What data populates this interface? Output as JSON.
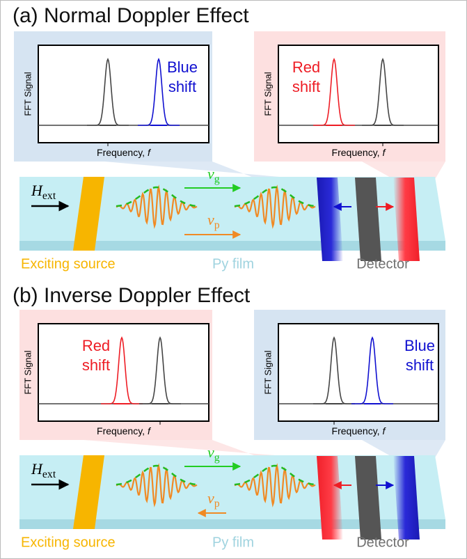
{
  "panels": [
    {
      "title": "(a) Normal Doppler Effect",
      "left_plot": {
        "y_label": "FFT Signal",
        "x_label": "Frequency,",
        "x_label_var": "f",
        "annotation": [
          "Blue",
          "shift"
        ]
      },
      "right_plot": {
        "y_label": "FFT Signal",
        "x_label": "Frequency,",
        "x_label_var": "f",
        "annotation": [
          "Red",
          "shift"
        ]
      },
      "field_label": {
        "symbol": "H",
        "subscript": "ext"
      },
      "group_velocity": {
        "symbol": "v",
        "subscript": "g"
      },
      "phase_velocity": {
        "symbol": "v",
        "subscript": "p"
      },
      "labels": {
        "source": "Exciting source",
        "film": "Py film",
        "detector": "Detector"
      }
    },
    {
      "title": "(b) Inverse Doppler Effect",
      "left_plot": {
        "y_label": "FFT Signal",
        "x_label": "Frequency,",
        "x_label_var": "f",
        "annotation": [
          "Red",
          "shift"
        ]
      },
      "right_plot": {
        "y_label": "FFT Signal",
        "x_label": "Frequency,",
        "x_label_var": "f",
        "annotation": [
          "Blue",
          "shift"
        ]
      },
      "field_label": {
        "symbol": "H",
        "subscript": "ext"
      },
      "group_velocity": {
        "symbol": "v",
        "subscript": "g"
      },
      "phase_velocity": {
        "symbol": "v",
        "subscript": "p"
      },
      "labels": {
        "source": "Exciting source",
        "film": "Py film",
        "detector": "Detector"
      }
    }
  ]
}
